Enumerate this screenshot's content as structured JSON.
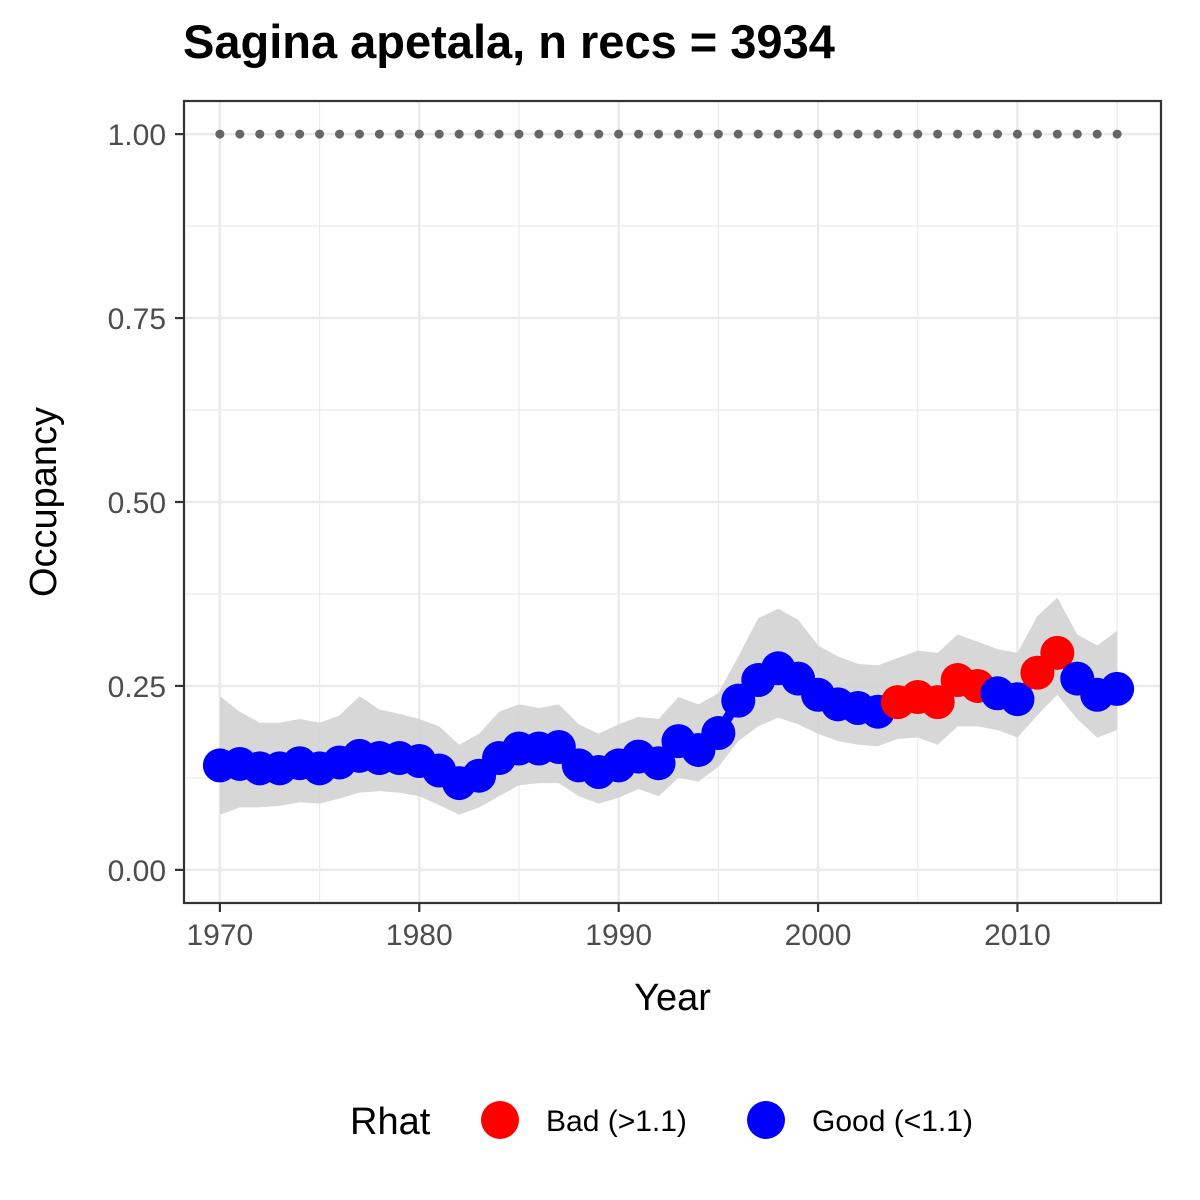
{
  "chart_data": {
    "type": "line",
    "title": "Sagina apetala, n recs = 3934",
    "xlabel": "Year",
    "ylabel": "Occupancy",
    "xlim": [
      1968.2,
      2017.2
    ],
    "ylim": [
      -0.045,
      1.045
    ],
    "x_ticks": [
      1970,
      1980,
      1990,
      2000,
      2010
    ],
    "y_ticks": [
      0.0,
      0.25,
      0.5,
      0.75,
      1.0
    ],
    "y_tick_labels": [
      "0.00",
      "0.25",
      "0.50",
      "0.75",
      "1.00"
    ],
    "grid": true,
    "reference_line": {
      "y": 1.0,
      "style": "dotted",
      "color": "#666666"
    },
    "legend": {
      "title": "Rhat",
      "position": "bottom",
      "entries": [
        {
          "label": "Bad (>1.1)",
          "color": "#ff0000"
        },
        {
          "label": "Good (<1.1)",
          "color": "#0000ff"
        }
      ]
    },
    "colors": {
      "good": "#0000ff",
      "bad": "#ff0000",
      "ribbon": "#d3d3d3"
    },
    "points": [
      {
        "x": 1970,
        "y": 0.142,
        "lower": 0.075,
        "upper": 0.236,
        "rhat": "good"
      },
      {
        "x": 1971,
        "y": 0.144,
        "lower": 0.085,
        "upper": 0.215,
        "rhat": "good"
      },
      {
        "x": 1972,
        "y": 0.138,
        "lower": 0.085,
        "upper": 0.2,
        "rhat": "good"
      },
      {
        "x": 1973,
        "y": 0.138,
        "lower": 0.087,
        "upper": 0.2,
        "rhat": "good"
      },
      {
        "x": 1974,
        "y": 0.145,
        "lower": 0.092,
        "upper": 0.205,
        "rhat": "good"
      },
      {
        "x": 1975,
        "y": 0.138,
        "lower": 0.09,
        "upper": 0.2,
        "rhat": "good"
      },
      {
        "x": 1976,
        "y": 0.146,
        "lower": 0.097,
        "upper": 0.21,
        "rhat": "good"
      },
      {
        "x": 1977,
        "y": 0.155,
        "lower": 0.105,
        "upper": 0.236,
        "rhat": "good"
      },
      {
        "x": 1978,
        "y": 0.152,
        "lower": 0.107,
        "upper": 0.218,
        "rhat": "good"
      },
      {
        "x": 1979,
        "y": 0.152,
        "lower": 0.105,
        "upper": 0.212,
        "rhat": "good"
      },
      {
        "x": 1980,
        "y": 0.148,
        "lower": 0.1,
        "upper": 0.205,
        "rhat": "good"
      },
      {
        "x": 1981,
        "y": 0.135,
        "lower": 0.088,
        "upper": 0.195,
        "rhat": "good"
      },
      {
        "x": 1982,
        "y": 0.118,
        "lower": 0.075,
        "upper": 0.17,
        "rhat": "good"
      },
      {
        "x": 1983,
        "y": 0.128,
        "lower": 0.085,
        "upper": 0.185,
        "rhat": "good"
      },
      {
        "x": 1984,
        "y": 0.152,
        "lower": 0.1,
        "upper": 0.215,
        "rhat": "good"
      },
      {
        "x": 1985,
        "y": 0.165,
        "lower": 0.115,
        "upper": 0.225,
        "rhat": "good"
      },
      {
        "x": 1986,
        "y": 0.165,
        "lower": 0.118,
        "upper": 0.22,
        "rhat": "good"
      },
      {
        "x": 1987,
        "y": 0.167,
        "lower": 0.118,
        "upper": 0.225,
        "rhat": "good"
      },
      {
        "x": 1988,
        "y": 0.142,
        "lower": 0.1,
        "upper": 0.198,
        "rhat": "good"
      },
      {
        "x": 1989,
        "y": 0.133,
        "lower": 0.09,
        "upper": 0.185,
        "rhat": "good"
      },
      {
        "x": 1990,
        "y": 0.142,
        "lower": 0.098,
        "upper": 0.198,
        "rhat": "good"
      },
      {
        "x": 1991,
        "y": 0.154,
        "lower": 0.11,
        "upper": 0.208,
        "rhat": "good"
      },
      {
        "x": 1992,
        "y": 0.145,
        "lower": 0.1,
        "upper": 0.205,
        "rhat": "good"
      },
      {
        "x": 1993,
        "y": 0.175,
        "lower": 0.125,
        "upper": 0.235,
        "rhat": "good"
      },
      {
        "x": 1994,
        "y": 0.163,
        "lower": 0.12,
        "upper": 0.225,
        "rhat": "good"
      },
      {
        "x": 1995,
        "y": 0.186,
        "lower": 0.14,
        "upper": 0.24,
        "rhat": "good"
      },
      {
        "x": 1996,
        "y": 0.23,
        "lower": 0.175,
        "upper": 0.29,
        "rhat": "good"
      },
      {
        "x": 1997,
        "y": 0.258,
        "lower": 0.195,
        "upper": 0.342,
        "rhat": "good"
      },
      {
        "x": 1998,
        "y": 0.274,
        "lower": 0.207,
        "upper": 0.355,
        "rhat": "good"
      },
      {
        "x": 1999,
        "y": 0.26,
        "lower": 0.198,
        "upper": 0.34,
        "rhat": "good"
      },
      {
        "x": 2000,
        "y": 0.238,
        "lower": 0.185,
        "upper": 0.305,
        "rhat": "good"
      },
      {
        "x": 2001,
        "y": 0.225,
        "lower": 0.175,
        "upper": 0.29,
        "rhat": "good"
      },
      {
        "x": 2002,
        "y": 0.22,
        "lower": 0.17,
        "upper": 0.28,
        "rhat": "good"
      },
      {
        "x": 2003,
        "y": 0.215,
        "lower": 0.168,
        "upper": 0.278,
        "rhat": "good"
      },
      {
        "x": 2004,
        "y": 0.228,
        "lower": 0.178,
        "upper": 0.288,
        "rhat": "bad"
      },
      {
        "x": 2005,
        "y": 0.235,
        "lower": 0.18,
        "upper": 0.298,
        "rhat": "bad"
      },
      {
        "x": 2006,
        "y": 0.228,
        "lower": 0.17,
        "upper": 0.295,
        "rhat": "bad"
      },
      {
        "x": 2007,
        "y": 0.258,
        "lower": 0.195,
        "upper": 0.32,
        "rhat": "bad"
      },
      {
        "x": 2008,
        "y": 0.25,
        "lower": 0.195,
        "upper": 0.31,
        "rhat": "bad"
      },
      {
        "x": 2009,
        "y": 0.24,
        "lower": 0.19,
        "upper": 0.3,
        "rhat": "good"
      },
      {
        "x": 2010,
        "y": 0.232,
        "lower": 0.18,
        "upper": 0.295,
        "rhat": "good"
      },
      {
        "x": 2011,
        "y": 0.268,
        "lower": 0.21,
        "upper": 0.345,
        "rhat": "bad"
      },
      {
        "x": 2012,
        "y": 0.295,
        "lower": 0.238,
        "upper": 0.37,
        "rhat": "bad"
      },
      {
        "x": 2013,
        "y": 0.26,
        "lower": 0.205,
        "upper": 0.32,
        "rhat": "good"
      },
      {
        "x": 2014,
        "y": 0.238,
        "lower": 0.18,
        "upper": 0.305,
        "rhat": "good"
      },
      {
        "x": 2015,
        "y": 0.246,
        "lower": 0.19,
        "upper": 0.325,
        "rhat": "good"
      }
    ]
  }
}
